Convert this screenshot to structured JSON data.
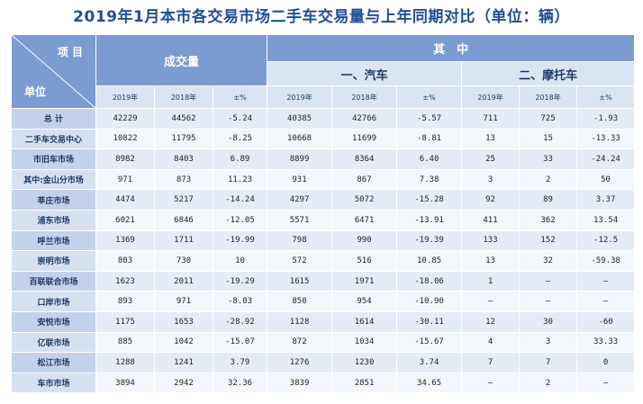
{
  "title": "2019年1月本市各交易市场二手车交易量与上年同期对比（单位：辆）",
  "header": {
    "corner_top": "项 目",
    "corner_bottom": "单位",
    "volume": "成交量",
    "among": "其　中",
    "car": "一、汽车",
    "moto": "二、摩托车",
    "y2019": "2019年",
    "y2018": "2018年",
    "pct": "±%"
  },
  "rows": [
    {
      "unit": "总 计",
      "v": [
        "42229",
        "44562",
        "-5.24",
        "40385",
        "42766",
        "-5.57",
        "711",
        "725",
        "-1.93"
      ]
    },
    {
      "unit": "二手车交易中心",
      "v": [
        "10822",
        "11795",
        "-8.25",
        "10668",
        "11699",
        "-8.81",
        "13",
        "15",
        "-13.33"
      ]
    },
    {
      "unit": "市旧车市场",
      "v": [
        "8982",
        "8403",
        "6.89",
        "8899",
        "8364",
        "6.40",
        "25",
        "33",
        "-24.24"
      ]
    },
    {
      "unit": "其中:金山分市场",
      "v": [
        "971",
        "873",
        "11.23",
        "931",
        "867",
        "7.38",
        "3",
        "2",
        "50"
      ]
    },
    {
      "unit": "莘庄市场",
      "v": [
        "4474",
        "5217",
        "-14.24",
        "4297",
        "5072",
        "-15.28",
        "92",
        "89",
        "3.37"
      ]
    },
    {
      "unit": "浦东市场",
      "v": [
        "6021",
        "6846",
        "-12.05",
        "5571",
        "6471",
        "-13.91",
        "411",
        "362",
        "13.54"
      ]
    },
    {
      "unit": "呼兰市场",
      "v": [
        "1369",
        "1711",
        "-19.99",
        "798",
        "990",
        "-19.39",
        "133",
        "152",
        "-12.5"
      ]
    },
    {
      "unit": "崇明市场",
      "v": [
        "803",
        "730",
        "10",
        "572",
        "516",
        "10.85",
        "13",
        "32",
        "-59.38"
      ]
    },
    {
      "unit": "百联联合市场",
      "v": [
        "1623",
        "2011",
        "-19.29",
        "1615",
        "1971",
        "-18.06",
        "1",
        "–",
        "–"
      ]
    },
    {
      "unit": "口岸市场",
      "v": [
        "893",
        "971",
        "-8.03",
        "850",
        "954",
        "-10.90",
        "–",
        "–",
        "–"
      ]
    },
    {
      "unit": "安悦市场",
      "v": [
        "1175",
        "1653",
        "-28.92",
        "1128",
        "1614",
        "-30.11",
        "12",
        "30",
        "-60"
      ]
    },
    {
      "unit": "亿联市场",
      "v": [
        "885",
        "1042",
        "-15.07",
        "872",
        "1034",
        "-15.67",
        "4",
        "3",
        "33.33"
      ]
    },
    {
      "unit": "松江市场",
      "v": [
        "1288",
        "1241",
        "3.79",
        "1276",
        "1230",
        "3.74",
        "7",
        "7",
        "0"
      ]
    },
    {
      "unit": "车市市场",
      "v": [
        "3894",
        "2942",
        "32.36",
        "3839",
        "2851",
        "34.65",
        "–",
        "2",
        "–"
      ]
    }
  ]
}
